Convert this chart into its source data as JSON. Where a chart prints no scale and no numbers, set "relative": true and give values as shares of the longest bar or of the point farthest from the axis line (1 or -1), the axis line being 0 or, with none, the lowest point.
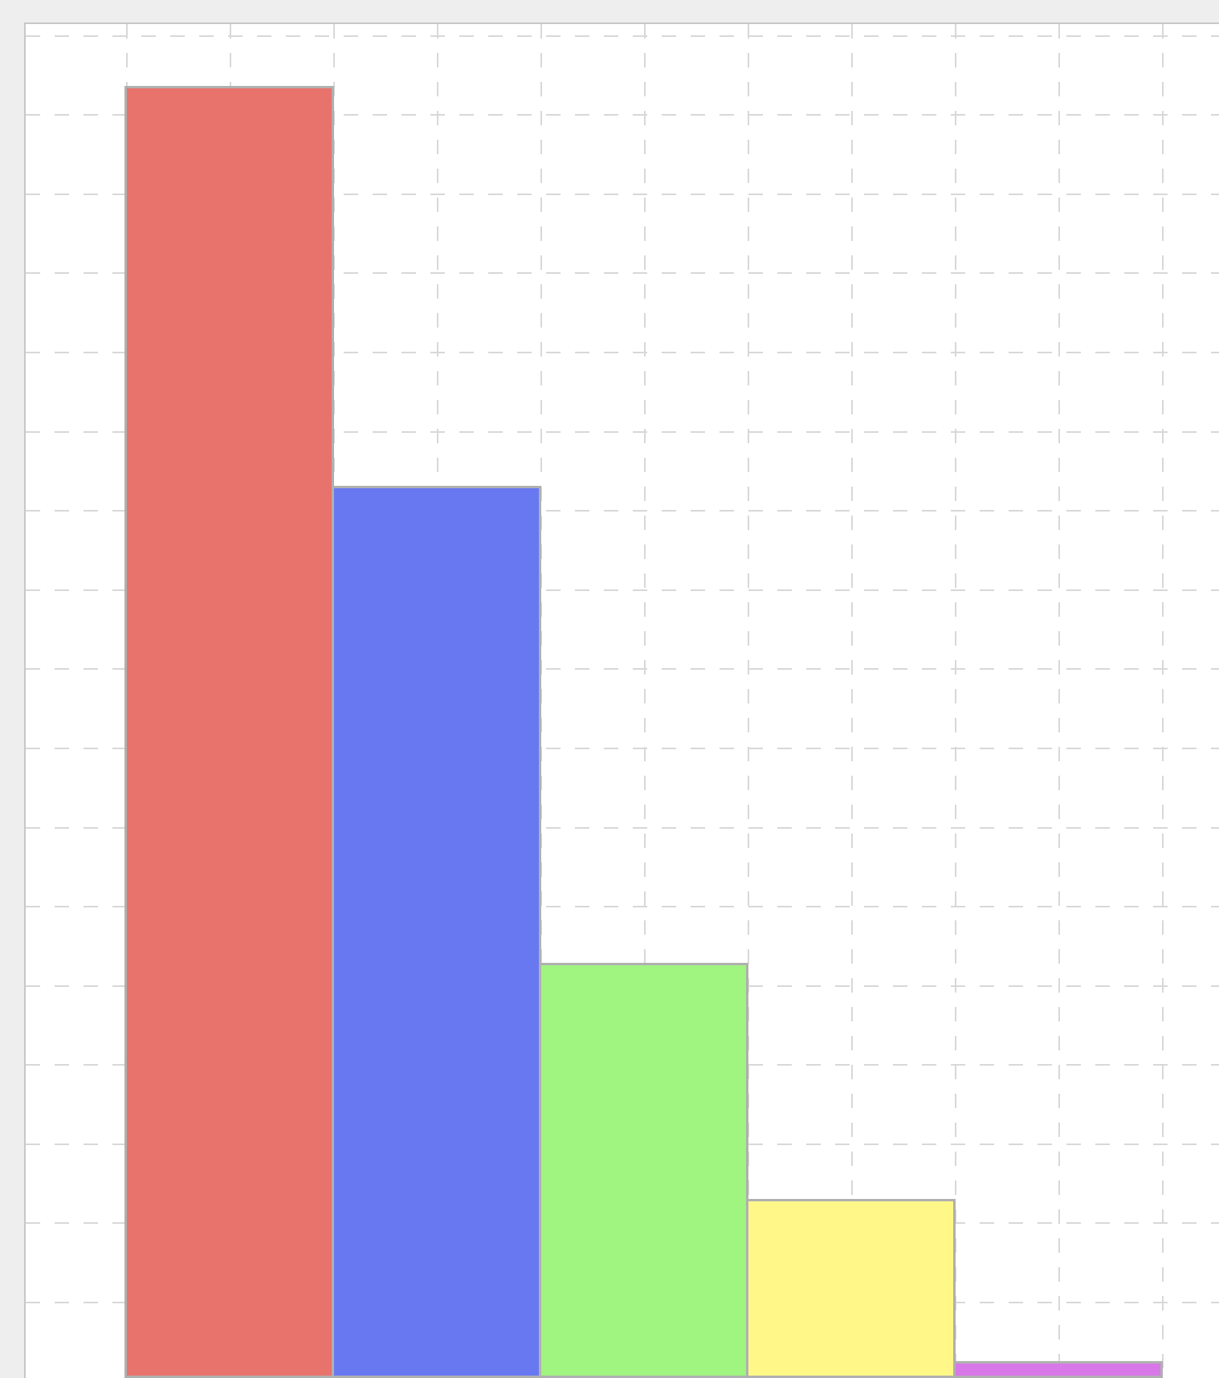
{
  "chart_data": {
    "type": "bar",
    "relative": true,
    "grid": true,
    "categories": [
      null,
      null,
      null,
      null,
      null
    ],
    "values": [
      1,
      0.69,
      0.32,
      0.137,
      0.011
    ],
    "colors": [
      "#e8736c",
      "#6878f0",
      "#a0f480",
      "#fff888",
      "#d878e8"
    ]
  }
}
